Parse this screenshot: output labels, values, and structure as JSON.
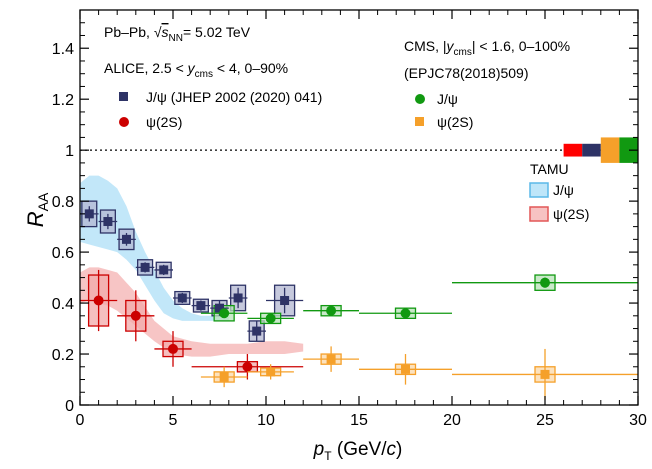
{
  "chart_data": {
    "type": "scatter",
    "xlabel": "p_T (GeV/c)",
    "ylabel": "R_AA",
    "xlim": [
      0,
      30
    ],
    "ylim": [
      0,
      1.55
    ],
    "xticks": [
      0,
      5,
      10,
      15,
      20,
      25,
      30
    ],
    "xtick_labels": [
      "0",
      "5",
      "10",
      "15",
      "20",
      "25",
      "30"
    ],
    "yticks": [
      0,
      0.2,
      0.4,
      0.6,
      0.8,
      1,
      1.2,
      1.4
    ],
    "ytick_labels": [
      "0",
      "0.2",
      "0.4",
      "0.6",
      "0.8",
      "1",
      "1.2",
      "1.4"
    ],
    "reference_line": {
      "y": 1,
      "style": "dotted"
    },
    "annotations": {
      "collision": "Pb–Pb, √s_NN = 5.02 TeV",
      "alice": "ALICE, 2.5 < y_cms < 4, 0–90%",
      "cms": "CMS, |y_cms| < 1.6, 0–100%",
      "cms_ref": "(EPJC78(2018)509)",
      "tamu": "TAMU"
    },
    "legend": {
      "alice_jpsi": "J/ψ (JHEP 2002 (2020) 041)",
      "alice_psi2s": "ψ(2S)",
      "cms_jpsi": "J/ψ",
      "cms_psi2s": "ψ(2S)",
      "tamu_jpsi": "J/ψ",
      "tamu_psi2s": "ψ(2S)"
    },
    "colors": {
      "alice_jpsi": "#2e3366",
      "alice_jpsi_box": "#b3b7d2",
      "alice_psi2s": "#cc0000",
      "alice_psi2s_box": "#f2aaaa",
      "cms_jpsi": "#119911",
      "cms_jpsi_box": "#b8e2b8",
      "cms_psi2s": "#f5a02a",
      "cms_psi2s_box": "#fbd8a8",
      "tamu_jpsi": "#bfe6f9",
      "tamu_jpsi_edge": "#5bb8e8",
      "tamu_psi2s": "#f7c2c2",
      "tamu_psi2s_edge": "#e25757"
    },
    "series": [
      {
        "id": "alice_jpsi",
        "points": [
          {
            "x": 0.5,
            "xlo": 0,
            "xhi": 1,
            "y": 0.75,
            "stat": 0.03,
            "syst": 0.05
          },
          {
            "x": 1.5,
            "xlo": 1,
            "xhi": 2,
            "y": 0.72,
            "stat": 0.03,
            "syst": 0.045
          },
          {
            "x": 2.5,
            "xlo": 2,
            "xhi": 3,
            "y": 0.65,
            "stat": 0.025,
            "syst": 0.04
          },
          {
            "x": 3.5,
            "xlo": 3,
            "xhi": 4,
            "y": 0.54,
            "stat": 0.02,
            "syst": 0.03
          },
          {
            "x": 4.5,
            "xlo": 4,
            "xhi": 5,
            "y": 0.53,
            "stat": 0.02,
            "syst": 0.03
          },
          {
            "x": 5.5,
            "xlo": 5,
            "xhi": 6,
            "y": 0.42,
            "stat": 0.02,
            "syst": 0.025
          },
          {
            "x": 6.5,
            "xlo": 6,
            "xhi": 7,
            "y": 0.39,
            "stat": 0.02,
            "syst": 0.025
          },
          {
            "x": 7.5,
            "xlo": 7,
            "xhi": 8,
            "y": 0.38,
            "stat": 0.03,
            "syst": 0.03
          },
          {
            "x": 8.5,
            "xlo": 8,
            "xhi": 9,
            "y": 0.42,
            "stat": 0.04,
            "syst": 0.05
          },
          {
            "x": 9.5,
            "xlo": 9,
            "xhi": 10,
            "y": 0.29,
            "stat": 0.04,
            "syst": 0.04
          },
          {
            "x": 11,
            "xlo": 10,
            "xhi": 12,
            "y": 0.41,
            "stat": 0.05,
            "syst": 0.06
          }
        ]
      },
      {
        "id": "alice_psi2s",
        "points": [
          {
            "x": 1,
            "xlo": 0,
            "xhi": 2,
            "y": 0.41,
            "stat": 0.12,
            "syst": 0.1
          },
          {
            "x": 3,
            "xlo": 2,
            "xhi": 4,
            "y": 0.35,
            "stat": 0.1,
            "syst": 0.06
          },
          {
            "x": 5,
            "xlo": 4,
            "xhi": 6,
            "y": 0.22,
            "stat": 0.07,
            "syst": 0.03
          },
          {
            "x": 9,
            "xlo": 6,
            "xhi": 12,
            "y": 0.15,
            "stat": 0.05,
            "syst": 0.02
          }
        ]
      },
      {
        "id": "cms_jpsi",
        "points": [
          {
            "x": 7.75,
            "xlo": 6.5,
            "xhi": 9,
            "y": 0.36,
            "stat": 0.01,
            "syst": 0.03
          },
          {
            "x": 10.25,
            "xlo": 9,
            "xhi": 11.5,
            "y": 0.34,
            "stat": 0.01,
            "syst": 0.02
          },
          {
            "x": 13.5,
            "xlo": 12,
            "xhi": 15,
            "y": 0.37,
            "stat": 0.01,
            "syst": 0.02
          },
          {
            "x": 17.5,
            "xlo": 15,
            "xhi": 20,
            "y": 0.36,
            "stat": 0.015,
            "syst": 0.02
          },
          {
            "x": 25,
            "xlo": 20,
            "xhi": 30,
            "y": 0.48,
            "stat": 0.02,
            "syst": 0.03
          }
        ]
      },
      {
        "id": "cms_psi2s",
        "points": [
          {
            "x": 7.75,
            "xlo": 6.5,
            "xhi": 9,
            "y": 0.11,
            "stat": 0.04,
            "syst": 0.02
          },
          {
            "x": 10.25,
            "xlo": 9,
            "xhi": 11.5,
            "y": 0.13,
            "stat": 0.03,
            "syst": 0.015
          },
          {
            "x": 13.5,
            "xlo": 12,
            "xhi": 15,
            "y": 0.18,
            "stat": 0.05,
            "syst": 0.02
          },
          {
            "x": 17.5,
            "xlo": 15,
            "xhi": 20,
            "y": 0.14,
            "stat": 0.06,
            "syst": 0.02
          },
          {
            "x": 25,
            "xlo": 20,
            "xhi": 30,
            "y": 0.12,
            "stat": 0.1,
            "syst": 0.03
          }
        ]
      }
    ],
    "bands": [
      {
        "id": "tamu_jpsi",
        "x": [
          0,
          0.5,
          1,
          1.5,
          2,
          2.5,
          3,
          3.5,
          4,
          4.5,
          5,
          5.5,
          6,
          6.5,
          7,
          7.5,
          8
        ],
        "upper": [
          0.87,
          0.9,
          0.9,
          0.88,
          0.85,
          0.78,
          0.68,
          0.6,
          0.53,
          0.46,
          0.41,
          0.38,
          0.36,
          0.35,
          0.35,
          0.35,
          0.35
        ],
        "lower": [
          0.64,
          0.63,
          0.62,
          0.61,
          0.6,
          0.57,
          0.53,
          0.47,
          0.41,
          0.36,
          0.34,
          0.33,
          0.33,
          0.33,
          0.33,
          0.33,
          0.33
        ]
      },
      {
        "id": "tamu_psi2s",
        "x": [
          0,
          0.5,
          1,
          1.5,
          2,
          3,
          4,
          5,
          6,
          7,
          8,
          9,
          10,
          11,
          12
        ],
        "upper": [
          0.52,
          0.54,
          0.54,
          0.53,
          0.52,
          0.44,
          0.33,
          0.27,
          0.25,
          0.24,
          0.24,
          0.24,
          0.25,
          0.25,
          0.24
        ],
        "lower": [
          0.4,
          0.41,
          0.4,
          0.39,
          0.37,
          0.31,
          0.25,
          0.2,
          0.19,
          0.19,
          0.2,
          0.2,
          0.2,
          0.2,
          0.21
        ]
      }
    ],
    "normalization_boxes": [
      {
        "x0": 26.0,
        "x1": 27.0,
        "y": 1,
        "half": 0.025,
        "color": "#ff0000"
      },
      {
        "x0": 27.0,
        "x1": 28.0,
        "y": 1,
        "half": 0.025,
        "color": "#2e3366"
      },
      {
        "x0": 28.0,
        "x1": 29.0,
        "y": 1,
        "half": 0.05,
        "color": "#f5a02a"
      },
      {
        "x0": 29.0,
        "x1": 30.0,
        "y": 1,
        "half": 0.05,
        "color": "#119911"
      }
    ]
  }
}
